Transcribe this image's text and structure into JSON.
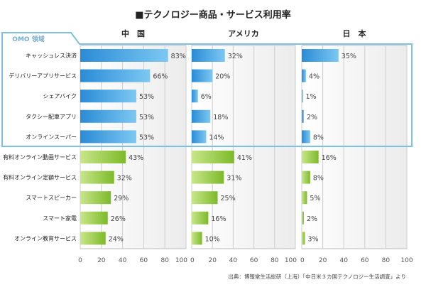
{
  "title": "■テクノロジー商品・サービス利用率",
  "source": "出典：博報堂生活総研（上海）「中日米３カ国テクノロジー生活調査」より",
  "omo_label": "OMO 領域",
  "colors": {
    "omo_bar": "#2a8bd6",
    "omo_bar_light": "#7cc8f2",
    "other_bar": "#7dba2a",
    "other_bar_light": "#c8e68a",
    "omo_frame": "#7ec0e0"
  },
  "chart_data": {
    "type": "bar",
    "orientation": "horizontal",
    "categories": [
      "キャッシュレス決済",
      "デリバリーアプリサービス",
      "シェアバイク",
      "タクシー配車アプリ",
      "オンラインスーパー",
      "有料オンライン動画サービス",
      "有料オンライン定額サービス",
      "スマートスピーカー",
      "スマート家電",
      "オンライン教育サービス"
    ],
    "omo_group_count": 5,
    "series": [
      {
        "name": "中　国",
        "values": [
          83,
          66,
          53,
          53,
          53,
          43,
          32,
          29,
          26,
          24
        ]
      },
      {
        "name": "アメリカ",
        "values": [
          32,
          20,
          6,
          18,
          14,
          41,
          31,
          25,
          16,
          10
        ]
      },
      {
        "name": "日　本",
        "values": [
          35,
          4,
          1,
          2,
          8,
          16,
          8,
          5,
          2,
          3
        ]
      }
    ],
    "xlim": [
      0,
      100
    ],
    "xticks": [
      0,
      20,
      40,
      60,
      80,
      100
    ],
    "value_suffix": "%",
    "grid": true
  }
}
